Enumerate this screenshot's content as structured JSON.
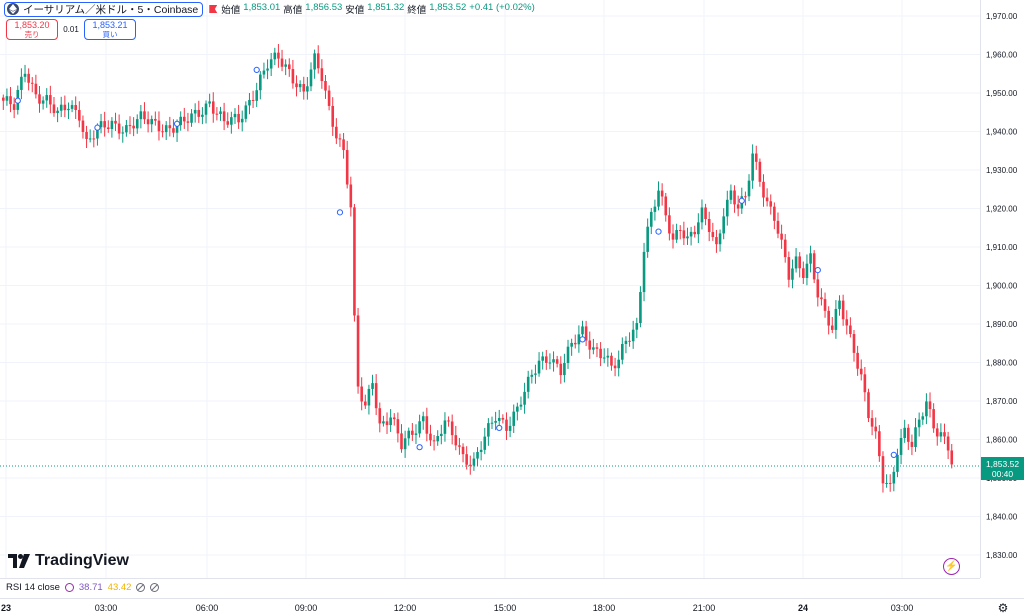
{
  "header": {
    "symbol_title": "イーサリアム／米ドル・5・Coinbase",
    "ohlc": [
      {
        "label": "始値",
        "value": "1,853.01"
      },
      {
        "label": "高値",
        "value": "1,856.53"
      },
      {
        "label": "安値",
        "value": "1,851.32"
      },
      {
        "label": "終値",
        "value": "1,853.52"
      }
    ],
    "change": "+0.41 (+0.02%)",
    "sell_price": "1,853.20",
    "sell_label": "売り",
    "spread": "0.01",
    "buy_price": "1,853.21",
    "buy_label": "買い"
  },
  "last_price": {
    "value": "1,853.52",
    "countdown": "00:40"
  },
  "logo_text": "TradingView",
  "rsi": {
    "label": "RSI 14 close",
    "value1": "38.71",
    "value2": "43.42"
  },
  "colors": {
    "up": "#089981",
    "down": "#f23645",
    "accent": "#2962ff",
    "grid": "#f0f3fa"
  },
  "chart_data": {
    "type": "candlestick",
    "symbol": "ETH/USD",
    "interval": "5",
    "y_ticks": [
      "1,970.00",
      "1,960.00",
      "1,950.00",
      "1,940.00",
      "1,930.00",
      "1,920.00",
      "1,910.00",
      "1,900.00",
      "1,890.00",
      "1,880.00",
      "1,870.00",
      "1,860.00",
      "1,850.00",
      "1,840.00",
      "1,830.00"
    ],
    "ylim": [
      1830,
      1970
    ],
    "x_ticks": [
      "23",
      "03:00",
      "06:00",
      "09:00",
      "12:00",
      "15:00",
      "18:00",
      "21:00",
      "24",
      "03:00"
    ],
    "anchors": [
      [
        0,
        1948
      ],
      [
        3,
        1946
      ],
      [
        6,
        1956
      ],
      [
        9,
        1950
      ],
      [
        12,
        1948
      ],
      [
        15,
        1944
      ],
      [
        18,
        1947
      ],
      [
        21,
        1945
      ],
      [
        23,
        1937
      ],
      [
        26,
        1940
      ],
      [
        30,
        1942
      ],
      [
        34,
        1941
      ],
      [
        38,
        1943
      ],
      [
        42,
        1942
      ],
      [
        46,
        1941
      ],
      [
        50,
        1942
      ],
      [
        54,
        1945
      ],
      [
        57,
        1948
      ],
      [
        61,
        1942
      ],
      [
        65,
        1943
      ],
      [
        69,
        1950
      ],
      [
        73,
        1957
      ],
      [
        76,
        1959
      ],
      [
        79,
        1956
      ],
      [
        83,
        1950
      ],
      [
        86,
        1958
      ],
      [
        88,
        1954
      ],
      [
        90,
        1946
      ],
      [
        92,
        1940
      ],
      [
        94,
        1935
      ],
      [
        96,
        1920
      ],
      [
        97,
        1890
      ],
      [
        98,
        1873
      ],
      [
        100,
        1868
      ],
      [
        102,
        1876
      ],
      [
        104,
        1864
      ],
      [
        107,
        1866
      ],
      [
        110,
        1858
      ],
      [
        113,
        1862
      ],
      [
        116,
        1866
      ],
      [
        119,
        1858
      ],
      [
        122,
        1864
      ],
      [
        125,
        1860
      ],
      [
        127,
        1856
      ],
      [
        130,
        1854
      ],
      [
        133,
        1860
      ],
      [
        136,
        1866
      ],
      [
        139,
        1864
      ],
      [
        142,
        1868
      ],
      [
        145,
        1874
      ],
      [
        148,
        1880
      ],
      [
        151,
        1882
      ],
      [
        154,
        1878
      ],
      [
        157,
        1884
      ],
      [
        160,
        1888
      ],
      [
        163,
        1884
      ],
      [
        166,
        1882
      ],
      [
        168,
        1878
      ],
      [
        170,
        1880
      ],
      [
        172,
        1886
      ],
      [
        175,
        1890
      ],
      [
        177,
        1910
      ],
      [
        179,
        1918
      ],
      [
        181,
        1924
      ],
      [
        183,
        1918
      ],
      [
        185,
        1912
      ],
      [
        187,
        1916
      ],
      [
        189,
        1912
      ],
      [
        191,
        1914
      ],
      [
        193,
        1918
      ],
      [
        195,
        1915
      ],
      [
        197,
        1910
      ],
      [
        199,
        1920
      ],
      [
        201,
        1924
      ],
      [
        203,
        1920
      ],
      [
        205,
        1922
      ],
      [
        207,
        1934
      ],
      [
        209,
        1928
      ],
      [
        211,
        1922
      ],
      [
        213,
        1918
      ],
      [
        215,
        1910
      ],
      [
        217,
        1902
      ],
      [
        219,
        1906
      ],
      [
        221,
        1904
      ],
      [
        223,
        1908
      ],
      [
        225,
        1898
      ],
      [
        227,
        1892
      ],
      [
        229,
        1888
      ],
      [
        231,
        1896
      ],
      [
        233,
        1890
      ],
      [
        235,
        1884
      ],
      [
        237,
        1876
      ],
      [
        239,
        1866
      ],
      [
        241,
        1860
      ],
      [
        243,
        1850
      ],
      [
        245,
        1848
      ],
      [
        247,
        1858
      ],
      [
        249,
        1862
      ],
      [
        251,
        1858
      ],
      [
        253,
        1864
      ],
      [
        255,
        1870
      ],
      [
        257,
        1864
      ],
      [
        259,
        1862
      ],
      [
        261,
        1858
      ],
      [
        262,
        1854
      ]
    ]
  }
}
